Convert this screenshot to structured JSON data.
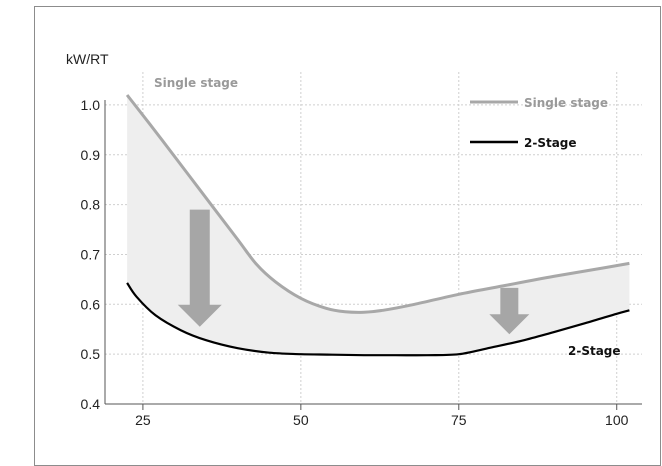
{
  "chart_data": {
    "type": "line",
    "ylabel": "kW/RT",
    "xlabel": "",
    "x_ticks": [
      25,
      50,
      75,
      100
    ],
    "y_ticks": [
      "1.0",
      "0.9",
      "0.8",
      "0.7",
      "0.6",
      "0.5",
      "0.4"
    ],
    "y_tick_values": [
      1.0,
      0.9,
      0.8,
      0.7,
      0.6,
      0.5,
      0.4
    ],
    "xlim": [
      19,
      104
    ],
    "ylim": [
      0.4,
      1.05
    ],
    "grid": true,
    "legend_position": "top-right",
    "series": [
      {
        "name": "Single stage",
        "color": "#a8a8a8",
        "x": [
          22.5,
          28,
          34,
          40,
          43,
          46,
          50,
          54,
          57,
          60,
          63,
          68,
          75,
          82,
          90,
          97,
          102
        ],
        "y": [
          1.02,
          0.93,
          0.83,
          0.73,
          0.68,
          0.645,
          0.612,
          0.592,
          0.585,
          0.584,
          0.588,
          0.6,
          0.62,
          0.637,
          0.656,
          0.671,
          0.682
        ]
      },
      {
        "name": "2-Stage",
        "color": "#000000",
        "x": [
          22.5,
          24,
          27,
          31,
          35,
          40,
          45,
          50,
          55,
          60,
          65,
          70,
          75,
          80,
          85,
          90,
          95,
          100,
          102
        ],
        "y": [
          0.643,
          0.615,
          0.578,
          0.548,
          0.528,
          0.512,
          0.503,
          0.5,
          0.499,
          0.498,
          0.498,
          0.498,
          0.5,
          0.513,
          0.527,
          0.544,
          0.562,
          0.581,
          0.588
        ]
      }
    ],
    "annotations": {
      "single_label": "Single stage",
      "two_label": "2-Stage"
    },
    "arrows": [
      {
        "x": 34,
        "from": 0.79,
        "to": 0.555
      },
      {
        "x": 83,
        "from": 0.633,
        "to": 0.54
      }
    ],
    "fill_color": "#eeeeee",
    "arrow_color": "#a6a6a6"
  }
}
